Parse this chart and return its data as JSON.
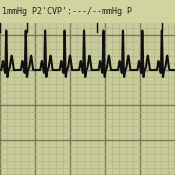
{
  "background_color": "#c8cc9a",
  "grid_major_color": "#7a7a5a",
  "grid_minor_color": "#b0b48a",
  "ecg_color": "#111111",
  "header_text": "1mmHg P2'CVP':---/--mmHg P",
  "header_bg": "#d0d4a0",
  "header_text_color": "#222222",
  "header_fontsize": 6.0,
  "fig_width": 1.75,
  "fig_height": 1.75,
  "ecg_linewidth": 1.5,
  "baseline_y": 0.6,
  "amplitude": 0.3,
  "num_beats": 9
}
